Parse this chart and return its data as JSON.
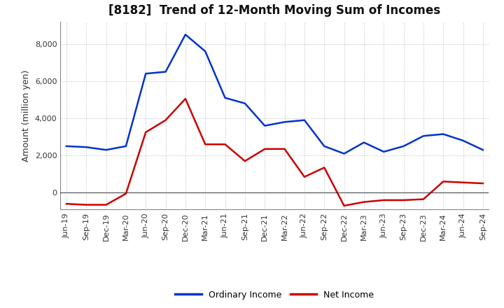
{
  "title": "[8182]  Trend of 12-Month Moving Sum of Incomes",
  "ylabel": "Amount (million yen)",
  "background_color": "#ffffff",
  "grid_color": "#bbbbbb",
  "labels": [
    "Jun-19",
    "Sep-19",
    "Dec-19",
    "Mar-20",
    "Jun-20",
    "Sep-20",
    "Dec-20",
    "Mar-21",
    "Jun-21",
    "Sep-21",
    "Dec-21",
    "Mar-22",
    "Jun-22",
    "Sep-22",
    "Dec-22",
    "Mar-23",
    "Jun-23",
    "Sep-23",
    "Dec-23",
    "Mar-24",
    "Jun-24",
    "Sep-24"
  ],
  "ordinary_income": [
    2500,
    2450,
    2300,
    2500,
    6400,
    6500,
    8500,
    7600,
    5100,
    4800,
    3600,
    3800,
    3900,
    2500,
    2100,
    2700,
    2200,
    2500,
    3050,
    3150,
    2800,
    2300
  ],
  "net_income": [
    -600,
    -650,
    -650,
    -50,
    3250,
    3900,
    5050,
    2600,
    2600,
    1700,
    2350,
    2350,
    850,
    1350,
    -700,
    -500,
    -400,
    -400,
    -350,
    600,
    550,
    500
  ],
  "ordinary_color": "#0033cc",
  "net_color": "#cc0000",
  "ylim_min": -900,
  "ylim_max": 9200,
  "yticks": [
    0,
    2000,
    4000,
    6000,
    8000
  ],
  "legend_ordinary": "Ordinary Income",
  "legend_net": "Net Income",
  "line_width": 1.8,
  "title_fontsize": 12,
  "tick_fontsize": 8,
  "ylabel_fontsize": 9
}
